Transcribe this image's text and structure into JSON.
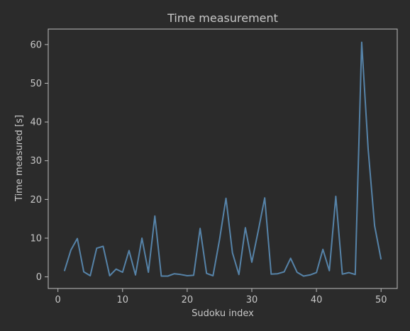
{
  "chart_data": {
    "type": "line",
    "title": "Time measurement",
    "xlabel": "Sudoku index",
    "ylabel": "Time measured [s]",
    "xlim": [
      -1.5,
      52.5
    ],
    "ylim": [
      -3,
      64
    ],
    "xticks": [
      0,
      10,
      20,
      30,
      40,
      50
    ],
    "yticks": [
      0,
      10,
      20,
      30,
      40,
      50,
      60
    ],
    "grid": false,
    "colors": {
      "background": "#2b2b2b",
      "axes_frame": "#bcbcbc",
      "text": "#c8c8c8",
      "line": "#5683a8"
    },
    "series": [
      {
        "x": [
          1,
          2,
          3,
          4,
          5,
          6,
          7,
          8,
          9,
          10,
          11,
          12,
          13,
          14,
          15,
          16,
          17,
          18,
          19,
          20,
          21,
          22,
          23,
          24,
          25,
          26,
          27,
          28,
          29,
          30,
          31,
          32,
          33,
          34,
          35,
          36,
          37,
          38,
          39,
          40,
          41,
          42,
          43,
          44,
          45,
          46,
          47,
          48,
          49,
          50
        ],
        "values": [
          1.5,
          6.9,
          9.9,
          1.3,
          0.3,
          7.4,
          7.9,
          0.3,
          2.0,
          1.2,
          6.8,
          0.5,
          10.0,
          1.2,
          15.7,
          0.2,
          0.2,
          0.8,
          0.6,
          0.3,
          0.4,
          12.5,
          0.9,
          0.3,
          9.5,
          20.3,
          6.2,
          0.6,
          12.7,
          3.8,
          11.9,
          20.4,
          0.7,
          0.8,
          1.3,
          4.8,
          1.2,
          0.2,
          0.5,
          1.1,
          7.1,
          1.6,
          20.8,
          0.7,
          1.1,
          0.6,
          60.6,
          33.0,
          13.2,
          4.5
        ]
      }
    ]
  }
}
